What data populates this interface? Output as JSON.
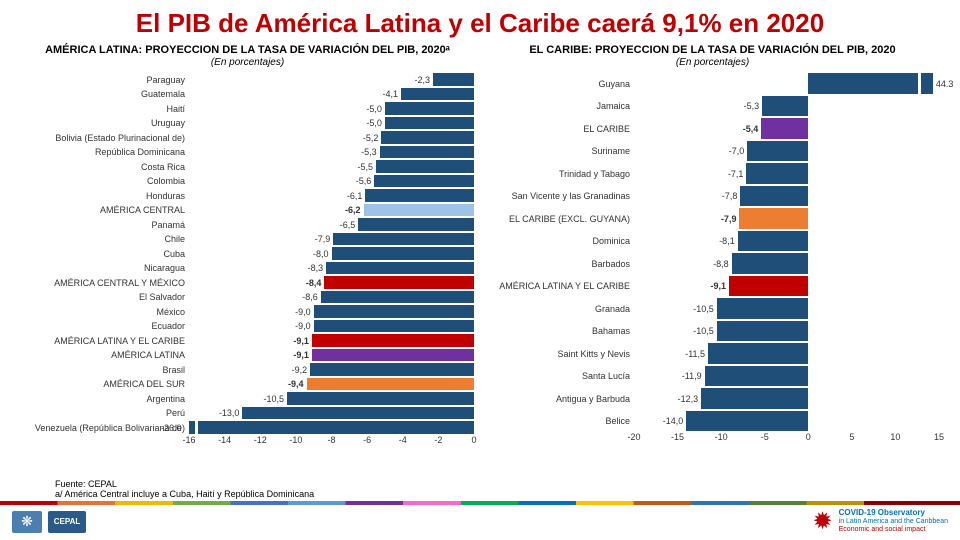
{
  "title": "El PIB de América Latina y el Caribe caerá 9,1% en 2020",
  "palette": {
    "default": "#1f4e79",
    "ac": "#9dc3e6",
    "acm": "#c00000",
    "alc": "#c00000",
    "al": "#7030a0",
    "ads": "#ed7d31",
    "elc": "#7030a0",
    "elcx": "#ed7d31"
  },
  "leftChart": {
    "title": "AMÉRICA LATINA: PROYECCION DE LA TASA DE VARIACIÓN DEL PIB, 2020ᵃ",
    "subtitle": "(En porcentajes)",
    "labelWidth": 165,
    "plotWidth": 290,
    "rowHeight": 14.5,
    "xmin": -16,
    "xmax": 0,
    "tickStep": 2,
    "data": [
      {
        "label": "Paraguay",
        "value": -2.3,
        "color": "default"
      },
      {
        "label": "Guatemala",
        "value": -4.1,
        "color": "default"
      },
      {
        "label": "Haití",
        "value": -5.0,
        "color": "default"
      },
      {
        "label": "Uruguay",
        "value": -5.0,
        "color": "default"
      },
      {
        "label": "Bolivia (Estado Plurinacional de)",
        "value": -5.2,
        "color": "default"
      },
      {
        "label": "República Dominicana",
        "value": -5.3,
        "color": "default"
      },
      {
        "label": "Costa Rica",
        "value": -5.5,
        "color": "default"
      },
      {
        "label": "Colombia",
        "value": -5.6,
        "color": "default"
      },
      {
        "label": "Honduras",
        "value": -6.1,
        "color": "default"
      },
      {
        "label": "AMÉRICA CENTRAL",
        "value": -6.2,
        "color": "ac",
        "bold": true
      },
      {
        "label": "Panamá",
        "value": -6.5,
        "color": "default"
      },
      {
        "label": "Chile",
        "value": -7.9,
        "color": "default"
      },
      {
        "label": "Cuba",
        "value": -8.0,
        "color": "default"
      },
      {
        "label": "Nicaragua",
        "value": -8.3,
        "color": "default"
      },
      {
        "label": "AMÉRICA CENTRAL Y MÉXICO",
        "value": -8.4,
        "color": "acm",
        "bold": true
      },
      {
        "label": "El Salvador",
        "value": -8.6,
        "color": "default"
      },
      {
        "label": "México",
        "value": -9.0,
        "color": "default"
      },
      {
        "label": "Ecuador",
        "value": -9.0,
        "color": "default"
      },
      {
        "label": "AMÉRICA LATINA Y EL CARIBE",
        "value": -9.1,
        "color": "alc",
        "bold": true
      },
      {
        "label": "AMÉRICA LATINA",
        "value": -9.1,
        "color": "al",
        "bold": true
      },
      {
        "label": "Brasil",
        "value": -9.2,
        "color": "default"
      },
      {
        "label": "AMÉRICA DEL SUR",
        "value": -9.4,
        "color": "ads",
        "bold": true
      },
      {
        "label": "Argentina",
        "value": -10.5,
        "color": "default"
      },
      {
        "label": "Perú",
        "value": -13.0,
        "color": "default"
      },
      {
        "label": "Venezuela (República Bolivariana de)",
        "value": -26.0,
        "color": "default",
        "broken": true
      }
    ]
  },
  "rightChart": {
    "title": "EL CARIBE: PROYECCION DE LA TASA DE VARIACIÓN DEL PIB, 2020",
    "subtitle": "(En porcentajes)",
    "labelWidth": 145,
    "plotWidth": 310,
    "rowHeight": 22.5,
    "xmin": -20,
    "xmax": 15,
    "tickStep": 5,
    "data": [
      {
        "label": "Guyana",
        "value": 44.3,
        "color": "default",
        "broken": true,
        "outside": true
      },
      {
        "label": "Jamaica",
        "value": -5.3,
        "color": "default"
      },
      {
        "label": "EL CARIBE",
        "value": -5.4,
        "color": "elc",
        "bold": true
      },
      {
        "label": "Suriname",
        "value": -7.0,
        "color": "default"
      },
      {
        "label": "Trinidad y Tabago",
        "value": -7.1,
        "color": "default"
      },
      {
        "label": "San Vicente y las Granadinas",
        "value": -7.8,
        "color": "default"
      },
      {
        "label": "EL CARIBE (EXCL. GUYANA)",
        "value": -7.9,
        "color": "elcx",
        "bold": true
      },
      {
        "label": "Dominica",
        "value": -8.1,
        "color": "default"
      },
      {
        "label": "Barbados",
        "value": -8.8,
        "color": "default"
      },
      {
        "label": "AMÉRICA LATINA Y EL CARIBE",
        "value": -9.1,
        "color": "alc",
        "bold": true
      },
      {
        "label": "Granada",
        "value": -10.5,
        "color": "default"
      },
      {
        "label": "Bahamas",
        "value": -10.5,
        "color": "default"
      },
      {
        "label": "Saint Kitts y Nevis",
        "value": -11.5,
        "color": "default"
      },
      {
        "label": "Santa Lucía",
        "value": -11.9,
        "color": "default"
      },
      {
        "label": "Antigua y Barbuda",
        "value": -12.3,
        "color": "default"
      },
      {
        "label": "Belice",
        "value": -14.0,
        "color": "default"
      }
    ]
  },
  "footnotes": {
    "line1": "Fuente: CEPAL",
    "line2": "a/ América Central incluye a Cuba, Haití y República Dominicana"
  },
  "badges": {
    "cepal": "CEPAL",
    "obs_title": "COVID-19 Observatory",
    "obs_sub": "in Latin America and the Caribbean",
    "obs_small": "Economic and social impact"
  }
}
